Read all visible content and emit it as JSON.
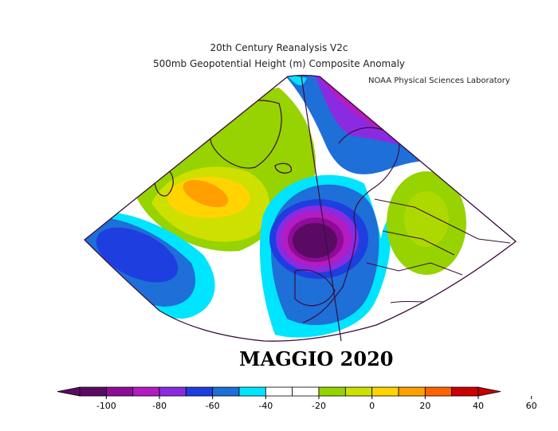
{
  "header": {
    "line1": "20th Century Reanalysis V2c",
    "line2": "500mb Geopotential Height (m) Composite Anomaly",
    "credit": "NOAA Physical Sciences Laboratory"
  },
  "caption": "MAGGIO 2020",
  "map_data": {
    "variable": "500mb Geopotential Height Composite Anomaly",
    "units": "m",
    "anomalies": [
      {
        "region": "Iberian Peninsula / eastern Atlantic",
        "value": -100,
        "kind": "low"
      },
      {
        "region": "Atlantic southwest of Greenland",
        "value": 40,
        "kind": "high"
      },
      {
        "region": "Western Atlantic (south of the high)",
        "value": -60,
        "kind": "low"
      },
      {
        "region": "Norwegian Sea / Scandinavia",
        "value": -70,
        "kind": "low"
      },
      {
        "region": "Central Europe",
        "value": 10,
        "kind": "high"
      }
    ]
  },
  "colorbar": {
    "tick_labels": [
      "-100",
      "-80",
      "-60",
      "-40",
      "-20",
      "0",
      "20",
      "40",
      "60"
    ],
    "bins": [
      {
        "color": "#5b0a64"
      },
      {
        "color": "#8e0c96"
      },
      {
        "color": "#b21cc0"
      },
      {
        "color": "#8a2be2"
      },
      {
        "color": "#1e3ee0"
      },
      {
        "color": "#1e6fd8"
      },
      {
        "color": "#00e5ff"
      },
      {
        "color": "#ffffff"
      },
      {
        "color": "#ffffff"
      },
      {
        "color": "#96d300"
      },
      {
        "color": "#cde000"
      },
      {
        "color": "#ffd400"
      },
      {
        "color": "#ffa000"
      },
      {
        "color": "#ff6400"
      },
      {
        "color": "#c80000"
      }
    ]
  }
}
